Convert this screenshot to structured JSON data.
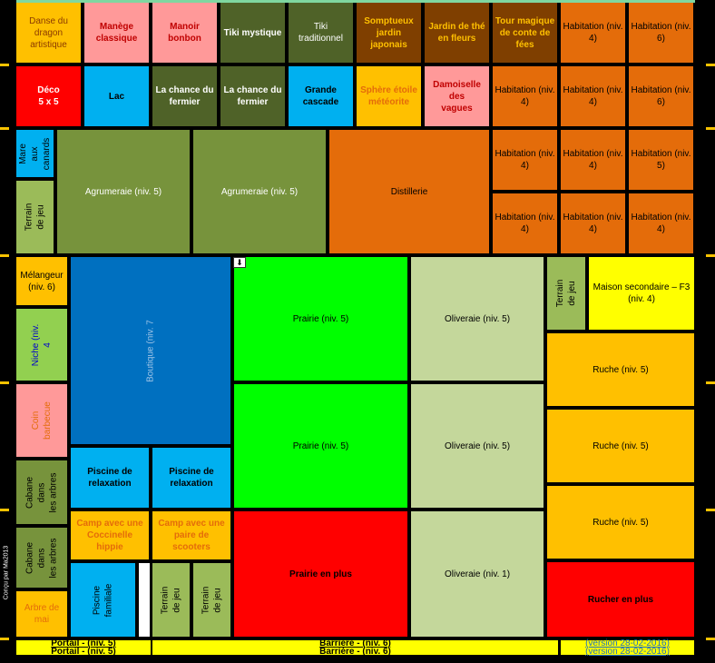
{
  "colors": {
    "background": "#000000",
    "yellow": "#ffc000",
    "pink": "#ff9999",
    "dark_olive": "#4f6228",
    "brown": "#7f3f00",
    "orange": "#e46c0a",
    "red": "#ff0000",
    "blue": "#00b0f0",
    "olive": "#77933c",
    "light_green": "#9bbb59",
    "bright_green": "#00ff00",
    "pale_olive": "#c4d79b",
    "dark_blue": "#0070c0",
    "lime": "#92d050",
    "bright_yellow": "#ffff00"
  },
  "cells": [
    {
      "text": "Danse du\ndragon\nartistique"
    },
    {
      "text": "Manège\nclassique"
    },
    {
      "text": "Manoir bonbon"
    },
    {
      "text": "Tiki mystique"
    },
    {
      "text": "Tiki\ntraditionnel"
    },
    {
      "text": "Somptueux\njardin japonais"
    },
    {
      "text": "Jardin de thé\nen fleurs"
    },
    {
      "text": "Tour magique\nde conte de\nfées"
    },
    {
      "text": "Habitation (niv.\n4)"
    },
    {
      "text": "Habitation (niv.\n6)"
    },
    {
      "text": "Déco\n5 x 5"
    },
    {
      "text": "Lac"
    },
    {
      "text": "La chance du\nfermier"
    },
    {
      "text": "La chance du\nfermier"
    },
    {
      "text": "Grande cascade"
    },
    {
      "text": "Sphère étoile\nmétéorite"
    },
    {
      "text": "Damoiselle des\nvagues"
    },
    {
      "text": "Habitation (niv.\n4)"
    },
    {
      "text": "Habitation (niv.\n4)"
    },
    {
      "text": "Habitation (niv.\n6)"
    },
    {
      "text": "Mare aux\ncanards"
    },
    {
      "text": "Terrain de jeu"
    },
    {
      "text": "Agrumeraie (niv. 5)"
    },
    {
      "text": "Agrumeraie (niv. 5)"
    },
    {
      "text": "Distillerie"
    },
    {
      "text": "Habitation (niv.\n4)"
    },
    {
      "text": "Habitation (niv.\n4)"
    },
    {
      "text": "Habitation (niv.\n5)"
    },
    {
      "text": "Habitation (niv.\n4)"
    },
    {
      "text": "Habitation (niv.\n4)"
    },
    {
      "text": "Habitation (niv.\n4)"
    },
    {
      "text": "Mélangeur\n(niv. 6)"
    },
    {
      "text": "Niche (niv. 4"
    },
    {
      "text": "Coin barbecue"
    },
    {
      "text": "Cabane dans\nles arbres"
    },
    {
      "text": "Cabane dans\nles arbres"
    },
    {
      "text": "Arbre de\nmai"
    },
    {
      "text": "Boutique (niv. 7"
    },
    {
      "text": "Prairie (niv. 5)"
    },
    {
      "text": "Oliveraie (niv. 5)"
    },
    {
      "text": "Terrain de jeu"
    },
    {
      "text": "Maison secondaire – F3\n(niv. 4)"
    },
    {
      "text": "Ruche (niv. 5)"
    },
    {
      "text": "Prairie (niv. 5)"
    },
    {
      "text": "Oliveraie (niv. 5)"
    },
    {
      "text": "Ruche (niv. 5)"
    },
    {
      "text": "Piscine de\nrelaxation"
    },
    {
      "text": "Piscine de\nrelaxation"
    },
    {
      "text": "Ruche (niv. 5)"
    },
    {
      "text": "Camp avec une\nCoccinelle hippie"
    },
    {
      "text": "Camp avec une\npaire de scooters"
    },
    {
      "text": "Prairie en plus"
    },
    {
      "text": "Oliveraie (niv. 1)"
    },
    {
      "text": "Rucher en plus"
    },
    {
      "text": "Piscine familiale"
    },
    {
      "text": ""
    },
    {
      "text": "Terrain de jeu"
    },
    {
      "text": "Terrain de jeu"
    }
  ],
  "footer": {
    "portail": "Portail - (niv. 5)\nPortail - (niv. 5)",
    "barriere": "Barrière - (niv. 6)\nBarrière - (niv. 6)",
    "version": "(version 28-02-2016)\n(version 28-02-2016)"
  },
  "credit": "Conçu par Ma2013",
  "download_glyph": "⬇"
}
